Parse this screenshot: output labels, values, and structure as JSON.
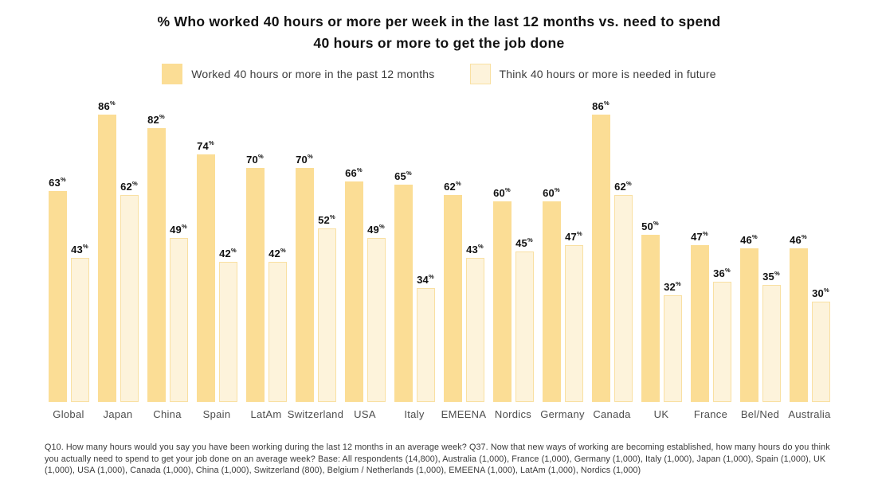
{
  "title": {
    "line1": "% Who worked 40 hours or more per week in the last 12 months vs. need to spend",
    "line2": "40 hours or more to get the job done"
  },
  "colors": {
    "bar_worked": "#FBDD95",
    "bar_think_fill": "#FDF3DB",
    "bar_think_border": "#F9E0A2"
  },
  "footnote": "Q10. How many hours would you say you have been working during the last 12 months in an average week? Q37. Now that new ways of working are becoming established, how many hours do you think you actually need to spend to get your job done on an average week? Base: All respondents (14,800), Australia (1,000), France (1,000), Germany (1,000), Italy (1,000), Japan (1,000), Spain (1,000), UK (1,000), USA (1,000), Canada (1,000), China (1,000), Switzerland (800), Belgium / Netherlands (1,000), EMEENA (1,000), LatAm (1,000), Nordics (1,000)",
  "chart_data": {
    "type": "bar",
    "title": "% Who worked 40 hours or more per week in the last 12 months vs. need to spend 40 hours or more to get the job done",
    "categories": [
      "Global",
      "Japan",
      "China",
      "Spain",
      "LatAm",
      "Switzerland",
      "USA",
      "Italy",
      "EMEENA",
      "Nordics",
      "Germany",
      "Canada",
      "UK",
      "France",
      "Bel/Ned",
      "Australia"
    ],
    "series": [
      {
        "name": "Worked 40 hours or more in the past 12 months",
        "color": "#FBDD95",
        "values": [
          63,
          86,
          82,
          74,
          70,
          70,
          66,
          65,
          62,
          60,
          60,
          86,
          50,
          47,
          46,
          46
        ]
      },
      {
        "name": "Think 40 hours or more is needed in future",
        "color": "#FDF3DB",
        "values": [
          43,
          62,
          49,
          42,
          42,
          52,
          49,
          34,
          43,
          45,
          47,
          62,
          32,
          36,
          35,
          30
        ]
      }
    ],
    "value_suffix": "%",
    "xlabel": "",
    "ylabel": "",
    "ylim": [
      0,
      100
    ],
    "grid": false,
    "axes_visible": false,
    "data_labels": true,
    "legend_position": "top"
  }
}
